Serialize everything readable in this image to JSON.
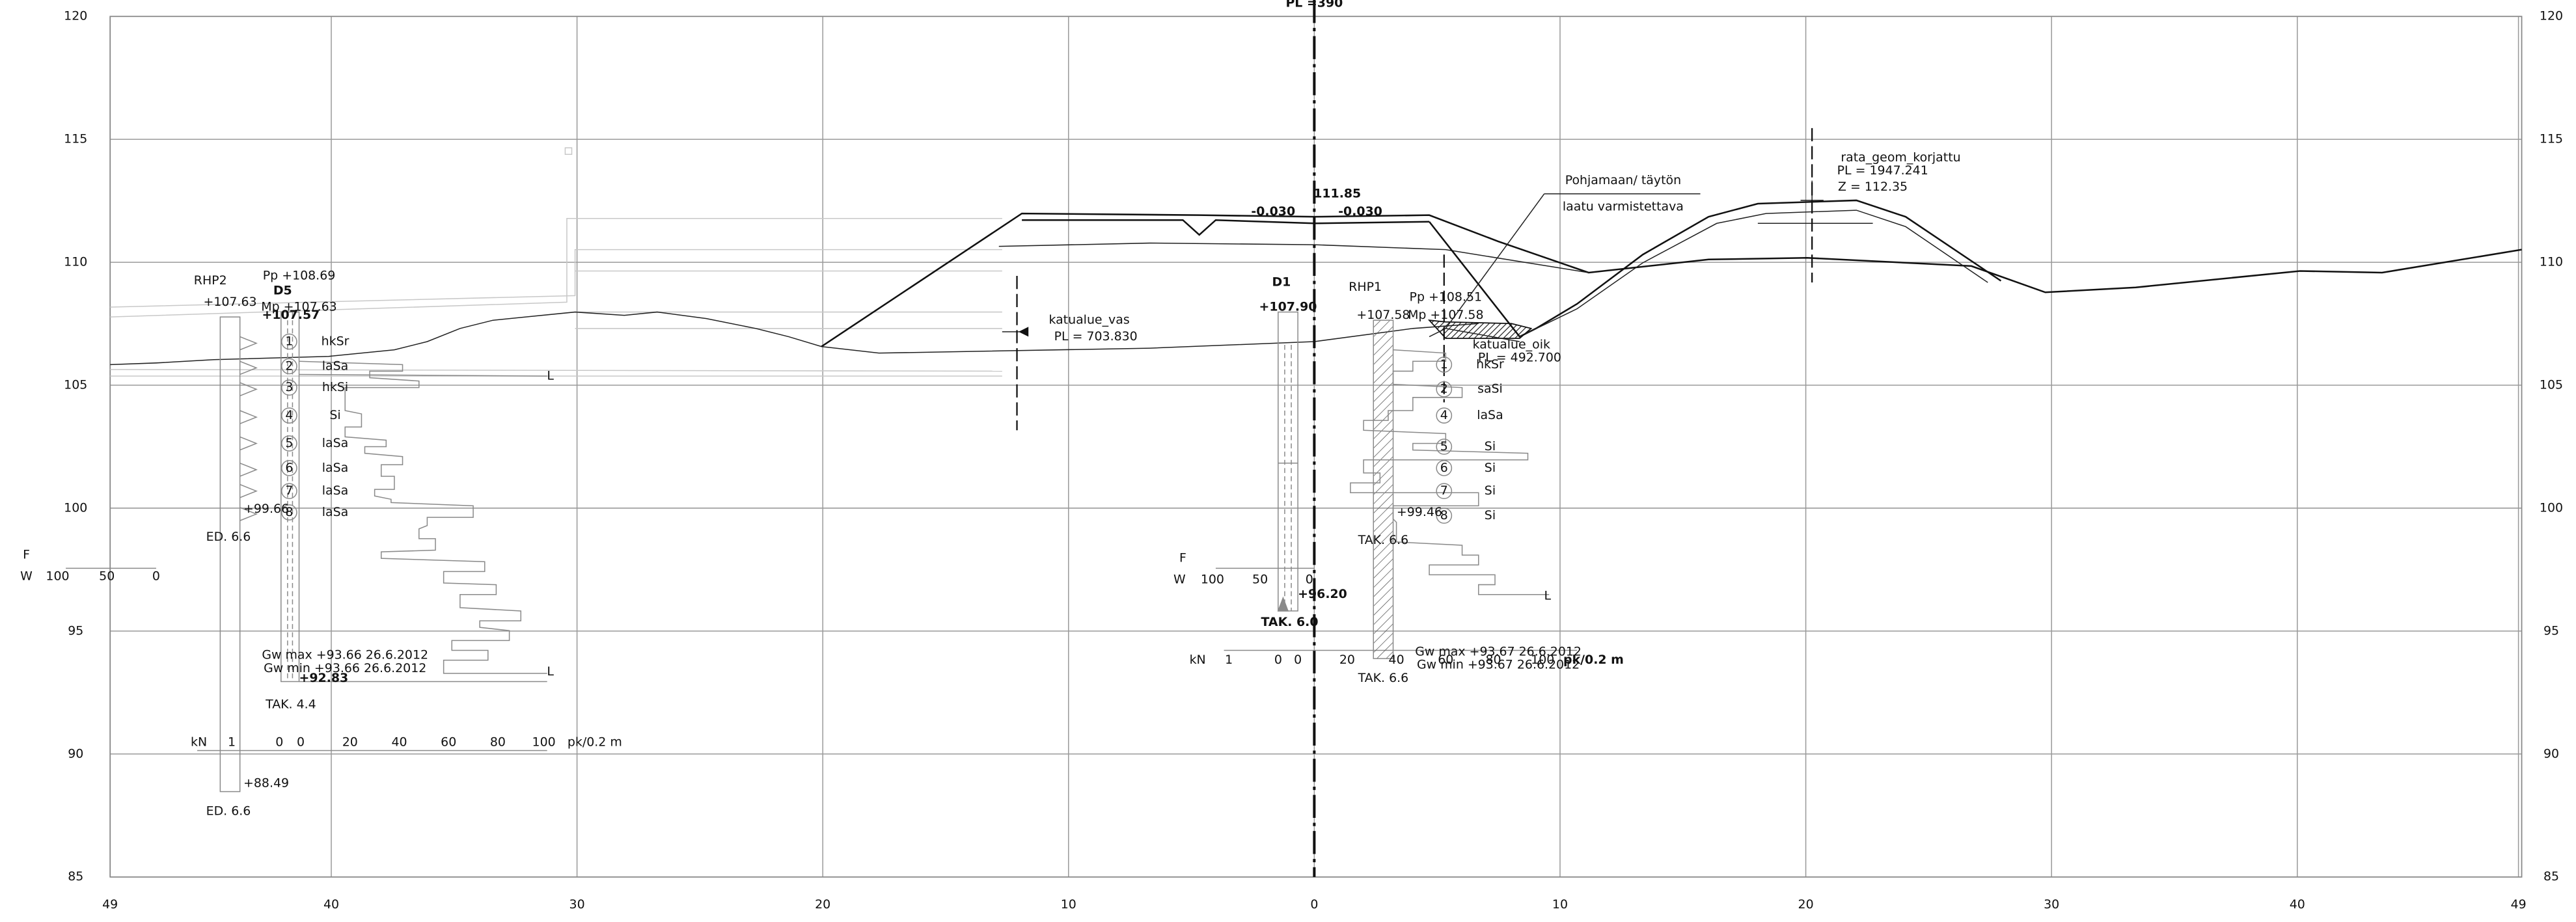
{
  "header": {
    "title": "PL =390"
  },
  "axes": {
    "x_ticks": [
      {
        "value": -49,
        "label": "49"
      },
      {
        "value": -40,
        "label": "40"
      },
      {
        "value": -30,
        "label": "30"
      },
      {
        "value": -20,
        "label": "20"
      },
      {
        "value": -10,
        "label": "10"
      },
      0,
      10,
      20,
      30,
      40,
      49
    ],
    "y_ticks": [
      120,
      115,
      110,
      105,
      100,
      95,
      90,
      85
    ]
  },
  "left_boring": {
    "name": "RHP2",
    "elev": "+107.63",
    "pp": "Pp +108.69",
    "id": "D5",
    "mp": "Mp +107.63",
    "elev2": "+107.57",
    "layers": [
      {
        "num": "1",
        "soil": "hkSr"
      },
      {
        "num": "2",
        "soil": "laSa"
      },
      {
        "num": "3",
        "soil": "hkSi"
      },
      {
        "num": "4",
        "soil": "Si"
      },
      {
        "num": "5",
        "soil": "laSa"
      },
      {
        "num": "6",
        "soil": "laSa"
      },
      {
        "num": "7",
        "soil": "laSa"
      },
      {
        "num": "8",
        "soil": "laSa"
      }
    ],
    "bottom": "+99.66",
    "ed": "ED. 6.6",
    "f": "F",
    "w": "W",
    "w_ticks": [
      "100",
      "50",
      "0"
    ],
    "gw_max": "Gw max +93.66 26.6.2012",
    "gw_min": "Gw min +93.66 26.6.2012",
    "low": "+92.83",
    "tak": "TAK. 4.4",
    "kn": "kN",
    "kn_ticks": [
      "1",
      "0",
      "0",
      "20",
      "40",
      "60",
      "80",
      "100"
    ],
    "unit": "pk/0.2 m",
    "end_elev": "+88.49",
    "end_ed": "ED. 6.6",
    "markers": [
      "L",
      "L"
    ]
  },
  "road": {
    "left_name": "katualue_vas",
    "left_pl": "PL = 703.830",
    "level": "111.85",
    "slope_left": "-0.030",
    "slope_right": "-0.030",
    "right_name": "katualue_oik",
    "right_pl": "PL = 492.700",
    "note": [
      "Pohjamaan/ täytön",
      "laatu varmistettava"
    ],
    "rail_name": "rata_geom_korjattu",
    "rail_pl": "PL = 1947.241",
    "rail_z": "Z = 112.35"
  },
  "center_boring": {
    "name": "D1",
    "elev": "+107.90",
    "f": "F",
    "w": "W",
    "w_ticks": [
      "100",
      "50",
      "0"
    ],
    "bottom": "+96.20",
    "tak": "TAK. 6.0",
    "kn": "kN",
    "kn_ticks": [
      "1",
      "0",
      "0",
      "20",
      "40",
      "60",
      "80",
      "100"
    ],
    "unit": "pk/0.2 m"
  },
  "right_boring": {
    "name": "RHP1",
    "elev": "+107.58",
    "pp": "Pp +108.51",
    "mp": "Mp +107.58",
    "layers": [
      {
        "num": "1",
        "soil": "hkSr"
      },
      {
        "num": "2",
        "soil": "saSi"
      },
      {
        "num": "4",
        "soil": "laSa"
      },
      {
        "num": "5",
        "soil": "Si"
      },
      {
        "num": "6",
        "soil": "Si"
      },
      {
        "num": "7",
        "soil": "Si"
      },
      {
        "num": "8",
        "soil": "Si"
      }
    ],
    "bottom": "+99.46",
    "tak": "TAK. 6.6",
    "gw_max": "Gw max +93.67 26.6.2012",
    "gw_min": "Gw min +93.67 26.6.2012",
    "tak2": "TAK. 6.6",
    "marker": "L"
  }
}
